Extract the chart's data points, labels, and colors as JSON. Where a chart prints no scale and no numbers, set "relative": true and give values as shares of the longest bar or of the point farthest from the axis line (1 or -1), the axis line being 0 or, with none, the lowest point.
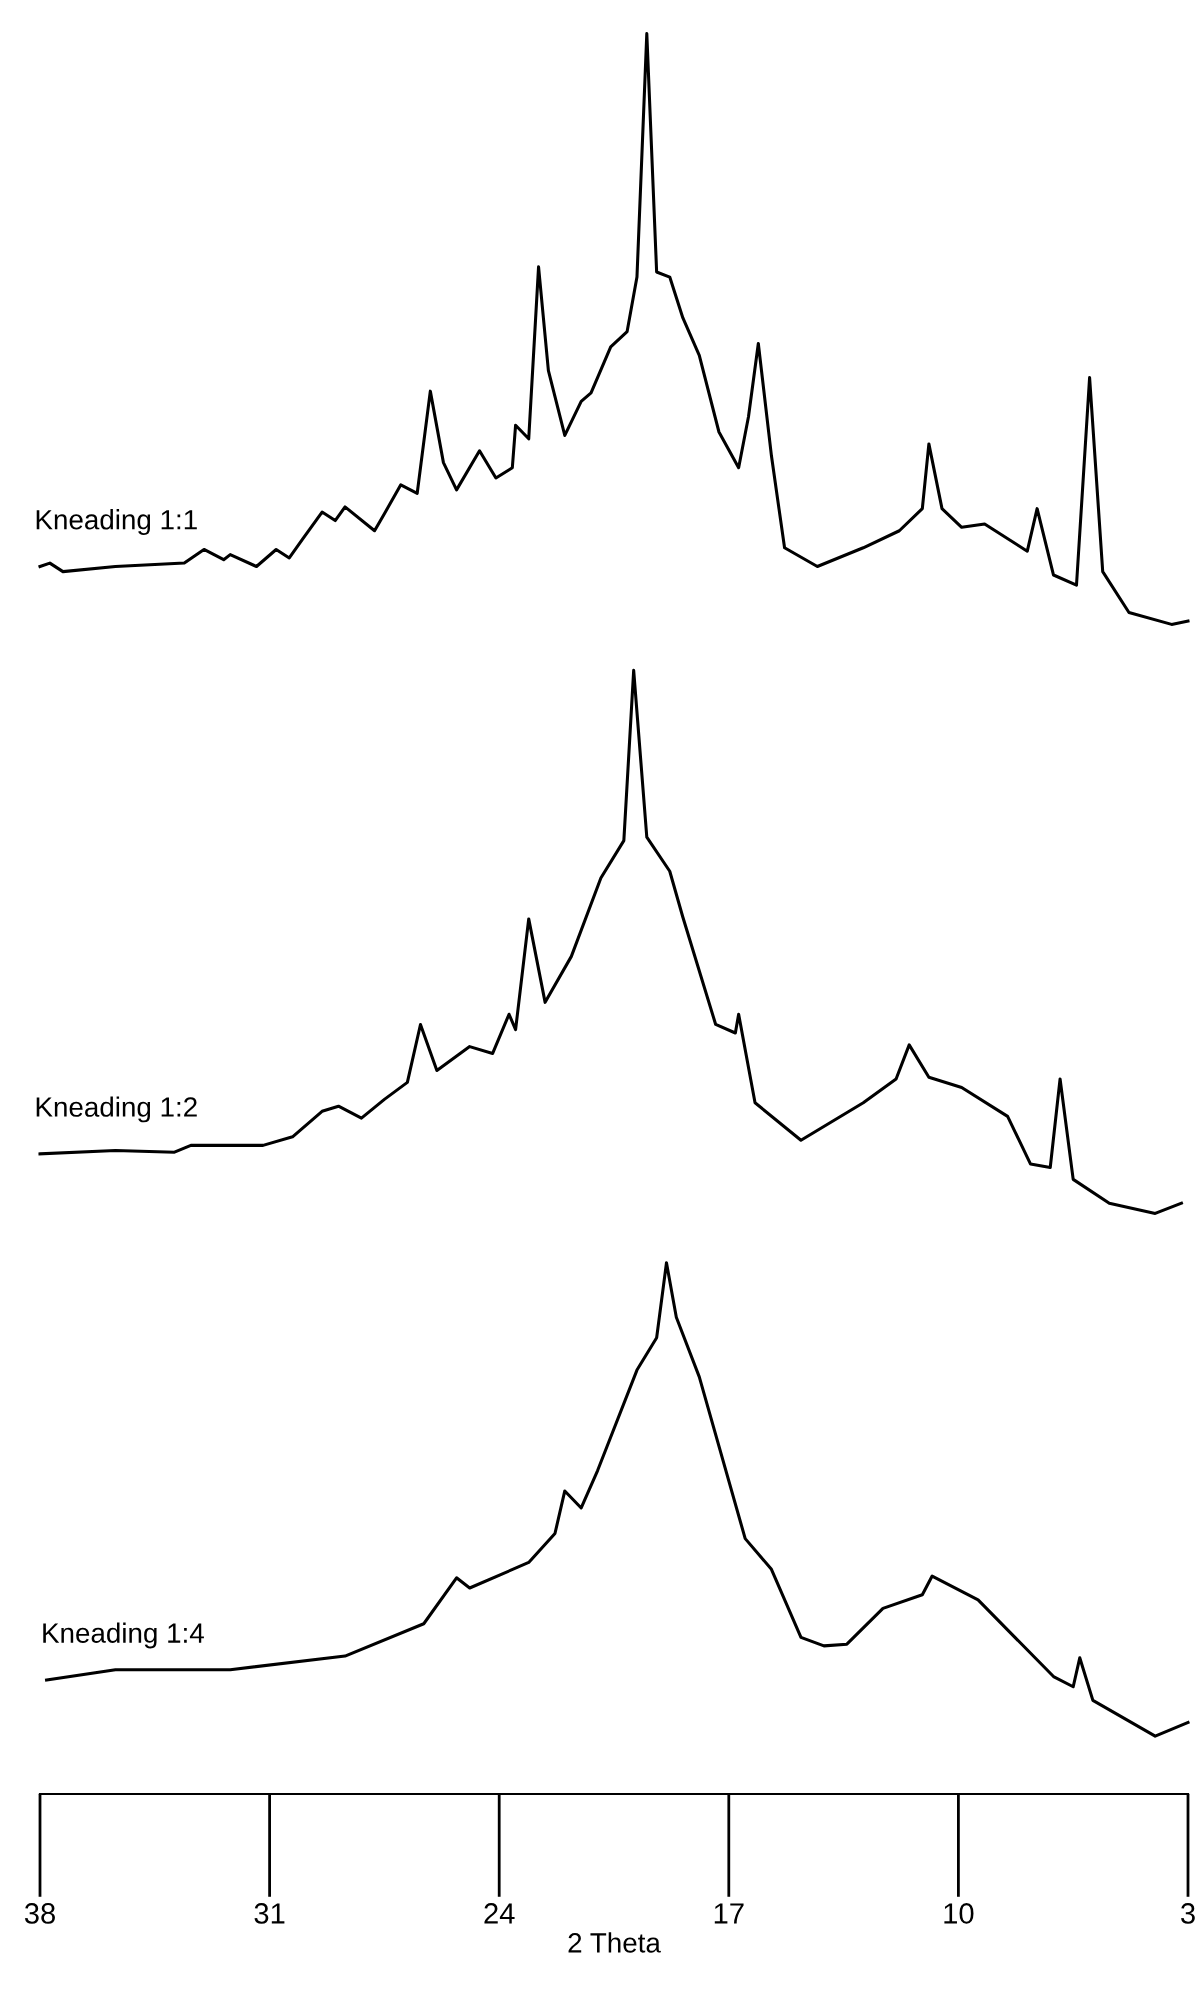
{
  "chart_data": {
    "type": "line",
    "relative": true,
    "xlabel": "2 Theta",
    "xlim": [
      38,
      3
    ],
    "xticks": [
      38,
      31,
      24,
      17,
      10,
      3
    ],
    "grid": false,
    "legend": false,
    "marker": "none",
    "line_style": "solid",
    "tick_labels": "x",
    "series": [
      {
        "name": "Kneading 1:1",
        "color": "#000000",
        "x": [
          38.0,
          37.7,
          37.3,
          35.7,
          33.6,
          33.0,
          32.4,
          32.2,
          31.4,
          30.8,
          30.4,
          30.0,
          29.4,
          29.0,
          28.7,
          27.8,
          27.5,
          27.0,
          26.5,
          26.1,
          25.7,
          25.3,
          24.6,
          24.1,
          23.6,
          23.5,
          23.1,
          22.8,
          22.5,
          22.0,
          21.5,
          21.2,
          20.6,
          20.1,
          19.8,
          19.5,
          19.2,
          18.8,
          18.4,
          17.9,
          17.3,
          16.7,
          16.4,
          16.1,
          15.7,
          15.3,
          14.3,
          12.9,
          11.8,
          11.1,
          10.9,
          10.5,
          9.9,
          9.2,
          7.9,
          7.6,
          7.1,
          6.4,
          6.0,
          5.6,
          4.8,
          3.5,
          3.0
        ],
        "values": [
          0.687,
          0.689,
          0.684,
          0.687,
          0.689,
          0.697,
          0.691,
          0.694,
          0.687,
          0.697,
          0.692,
          0.703,
          0.719,
          0.714,
          0.722,
          0.708,
          0.718,
          0.735,
          0.73,
          0.79,
          0.748,
          0.732,
          0.755,
          0.739,
          0.745,
          0.77,
          0.762,
          0.863,
          0.802,
          0.764,
          0.784,
          0.789,
          0.816,
          0.825,
          0.857,
          1.0,
          0.86,
          0.857,
          0.833,
          0.811,
          0.766,
          0.745,
          0.775,
          0.818,
          0.752,
          0.698,
          0.687,
          0.698,
          0.708,
          0.721,
          0.759,
          0.721,
          0.71,
          0.712,
          0.696,
          0.721,
          0.682,
          0.676,
          0.798,
          0.684,
          0.66,
          0.653,
          0.655
        ]
      },
      {
        "name": "Kneading 1:2",
        "color": "#000000",
        "x": [
          38.0,
          35.7,
          33.9,
          33.4,
          31.2,
          30.3,
          29.4,
          28.9,
          28.2,
          27.5,
          26.8,
          26.4,
          25.9,
          24.9,
          24.2,
          23.7,
          23.5,
          23.1,
          22.6,
          21.8,
          20.9,
          20.2,
          19.9,
          19.5,
          18.8,
          18.4,
          17.4,
          16.8,
          16.7,
          16.2,
          14.8,
          12.9,
          11.9,
          11.5,
          10.9,
          9.9,
          8.5,
          7.8,
          7.2,
          6.9,
          6.5,
          5.4,
          4.0,
          3.2
        ],
        "values": [
          0.342,
          0.344,
          0.343,
          0.347,
          0.347,
          0.352,
          0.367,
          0.37,
          0.363,
          0.374,
          0.384,
          0.418,
          0.391,
          0.405,
          0.401,
          0.424,
          0.415,
          0.48,
          0.431,
          0.458,
          0.504,
          0.526,
          0.626,
          0.528,
          0.508,
          0.481,
          0.418,
          0.413,
          0.424,
          0.372,
          0.35,
          0.372,
          0.386,
          0.406,
          0.387,
          0.381,
          0.364,
          0.336,
          0.334,
          0.386,
          0.327,
          0.313,
          0.307,
          0.313
        ]
      },
      {
        "name": "Kneading 1:4",
        "color": "#000000",
        "x": [
          37.8,
          35.7,
          32.2,
          28.7,
          26.3,
          25.3,
          24.9,
          23.1,
          22.3,
          22.0,
          21.5,
          21.0,
          19.8,
          19.2,
          18.9,
          18.6,
          17.9,
          16.5,
          15.7,
          14.8,
          14.1,
          13.4,
          12.3,
          11.1,
          10.8,
          9.4,
          7.1,
          6.5,
          6.3,
          5.9,
          4.0,
          3.0
        ],
        "values": [
          0.033,
          0.039,
          0.039,
          0.047,
          0.066,
          0.093,
          0.087,
          0.102,
          0.119,
          0.144,
          0.134,
          0.156,
          0.215,
          0.234,
          0.278,
          0.246,
          0.211,
          0.116,
          0.098,
          0.058,
          0.053,
          0.054,
          0.075,
          0.083,
          0.094,
          0.08,
          0.035,
          0.029,
          0.046,
          0.021,
          0.0,
          0.008
        ]
      }
    ]
  }
}
